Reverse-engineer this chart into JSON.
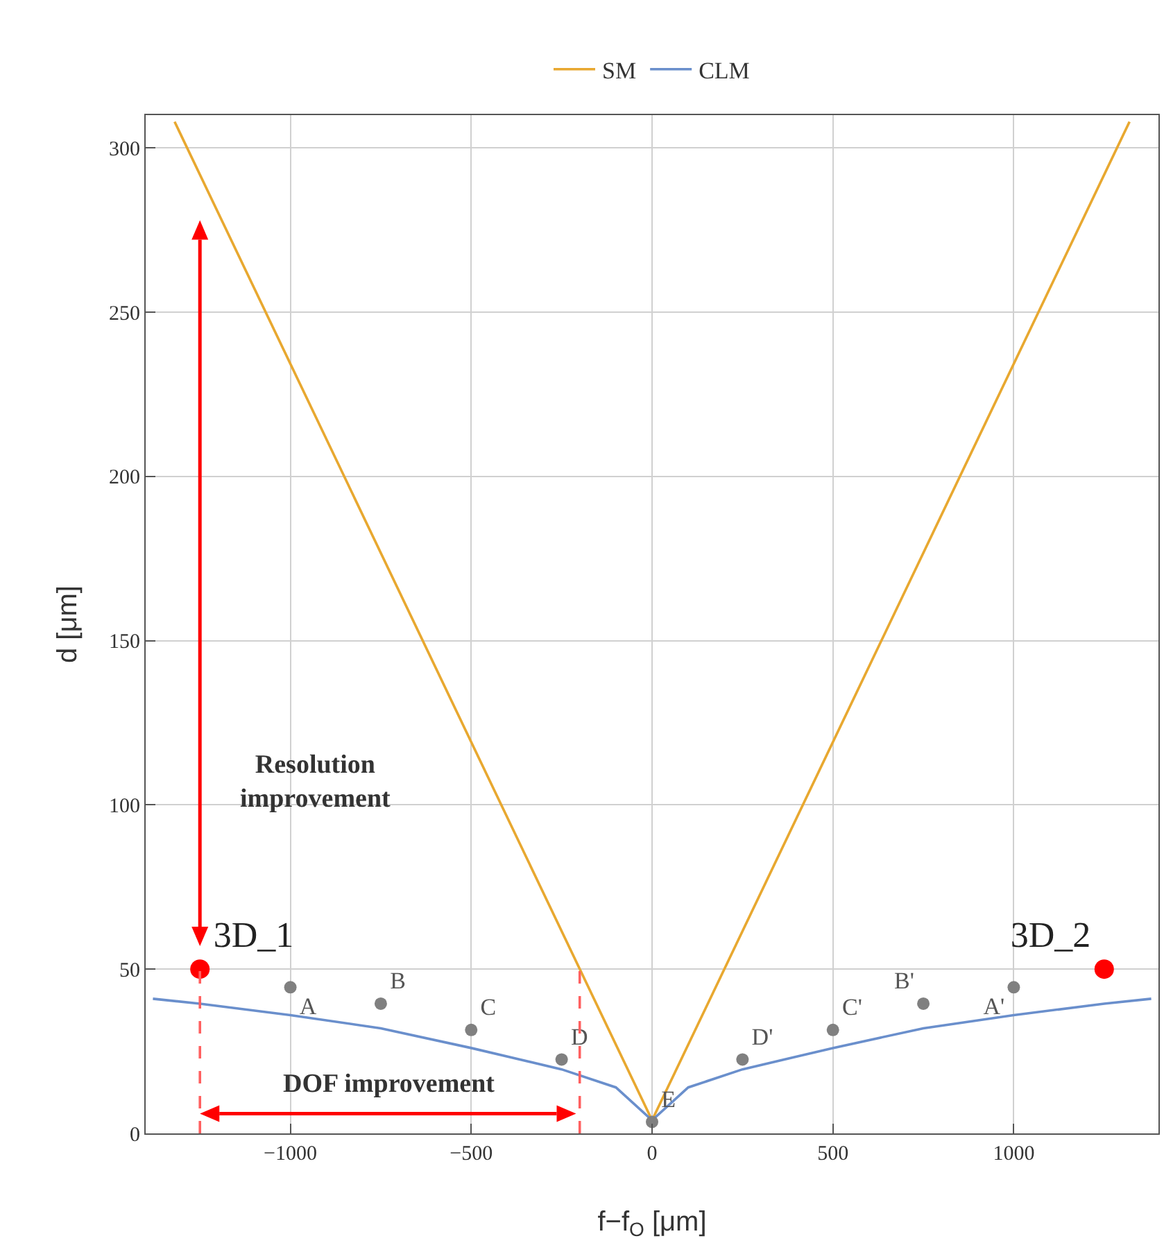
{
  "chart_data": {
    "type": "line",
    "xlabel": "f−f$_{O}$ [μm]",
    "ylabel": "d [μm]",
    "xlim": [
      -1400,
      1400
    ],
    "ylim": [
      0,
      310
    ],
    "xticks": [
      -1000,
      -500,
      0,
      500,
      1000
    ],
    "yticks": [
      0,
      50,
      100,
      150,
      200,
      250,
      300
    ],
    "grid": true,
    "legend": "top",
    "marker": "none",
    "series": [
      {
        "name": "SM",
        "color": "#e8a830",
        "x": [
          -1320,
          0,
          1320
        ],
        "values": [
          308,
          4,
          308
        ]
      },
      {
        "name": "CLM",
        "color": "#6a8fcc",
        "x": [
          -1380,
          -1250,
          -1000,
          -750,
          -500,
          -250,
          -100,
          0,
          100,
          250,
          500,
          750,
          1000,
          1250,
          1380
        ],
        "values": [
          41,
          39.5,
          36,
          32,
          26,
          19.5,
          14,
          4,
          14,
          19.5,
          26,
          32,
          36,
          39.5,
          41
        ]
      },
      {
        "type": "scatter",
        "color": "#808080",
        "marker": "circle",
        "x": [
          -1000,
          -750,
          -500,
          -250,
          0,
          250,
          500,
          750,
          1000
        ],
        "values": [
          44.5,
          39.5,
          31.5,
          22.5,
          3.5,
          22.5,
          31.5,
          39.5,
          44.5
        ],
        "value_labels": [
          "A",
          "B",
          "C",
          "D",
          "E",
          "D'",
          "C'",
          "B'",
          "A'"
        ]
      },
      {
        "type": "scatter",
        "color": "#ff0000",
        "marker": "circle",
        "x": [
          -1250,
          1250
        ],
        "values": [
          50,
          50
        ],
        "value_labels": [
          "3D_1",
          "3D_2"
        ]
      },
      {
        "type": "line",
        "color": "#ff6060",
        "line_style": "dashed",
        "x": [
          -1250,
          -1250
        ],
        "values": [
          0,
          50
        ]
      },
      {
        "type": "line",
        "color": "#ff6060",
        "line_style": "dashed",
        "x": [
          -200,
          -200
        ],
        "values": [
          0,
          50
        ]
      }
    ],
    "annotations": [
      "Resolution\nimprovement",
      "DOF improvement"
    ]
  }
}
